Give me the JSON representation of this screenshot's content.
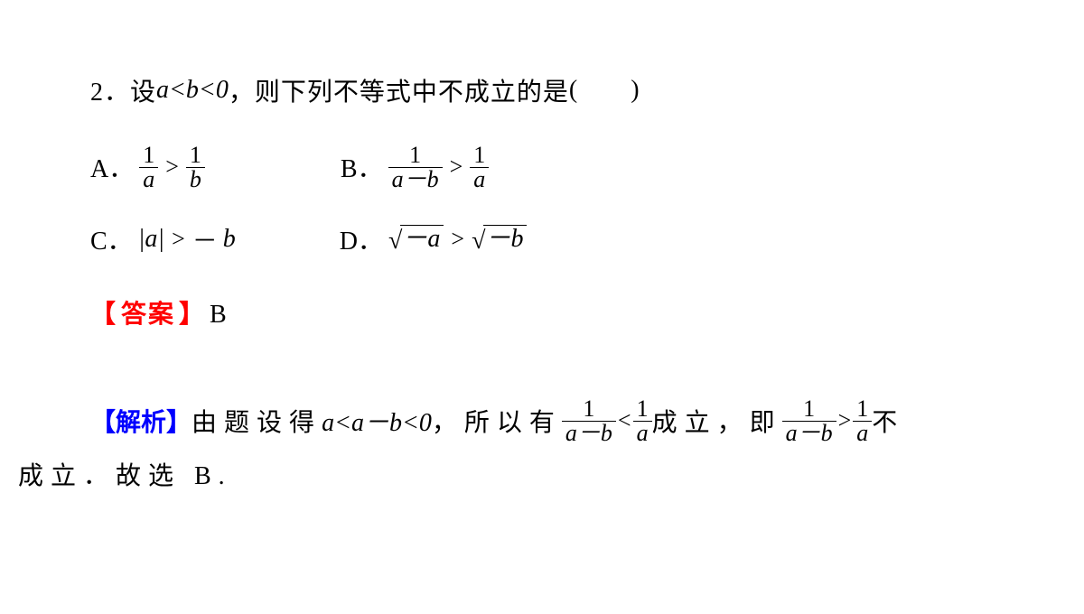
{
  "colors": {
    "text": "#000000",
    "background": "#ffffff",
    "answer_label": "#ff0000",
    "explain_label": "#0000ff"
  },
  "typography": {
    "body_fontsize_pt": 21,
    "font_family": "Times New Roman / SimSun serif"
  },
  "question": {
    "number": "2．",
    "stem_prefix": "设 ",
    "stem_math": "a<b<0",
    "stem_suffix": "，则下列不等式中不成立的是",
    "paren_open": "(",
    "paren_space": "　　",
    "paren_close": ")"
  },
  "choices": {
    "A": {
      "label": "A．",
      "frac1_num": "1",
      "frac1_den": "a",
      "op": ">",
      "frac2_num": "1",
      "frac2_den": "b"
    },
    "B": {
      "label": "B．",
      "frac1_num": "1",
      "frac1_den": "a－b",
      "op": ">",
      "frac2_num": "1",
      "frac2_den": "a"
    },
    "C": {
      "label": "C．",
      "lhs": "|a|",
      "op": ">",
      "rhs_prefix": "－",
      "rhs": "b"
    },
    "D": {
      "label": "D．",
      "sqrt1": "－a",
      "op": ">",
      "sqrt2": "－b"
    }
  },
  "answer": {
    "bracket_open": "【",
    "label": "答案",
    "bracket_close": "】",
    "value": "B"
  },
  "explanation": {
    "bracket_open": "【",
    "label": "解析",
    "bracket_close": "】",
    "seg1": "由题设得 ",
    "math1": "a<a－b<0",
    "seg2": "，所以有",
    "frac1_num": "1",
    "frac1_den": "a－b",
    "lt": "<",
    "frac2_num": "1",
    "frac2_den": "a",
    "seg3": "成立，即",
    "frac3_num": "1",
    "frac3_den": "a－b",
    "gt": ">",
    "frac4_num": "1",
    "frac4_den": "a",
    "seg4": "不",
    "line2": "成立．故选 B."
  }
}
